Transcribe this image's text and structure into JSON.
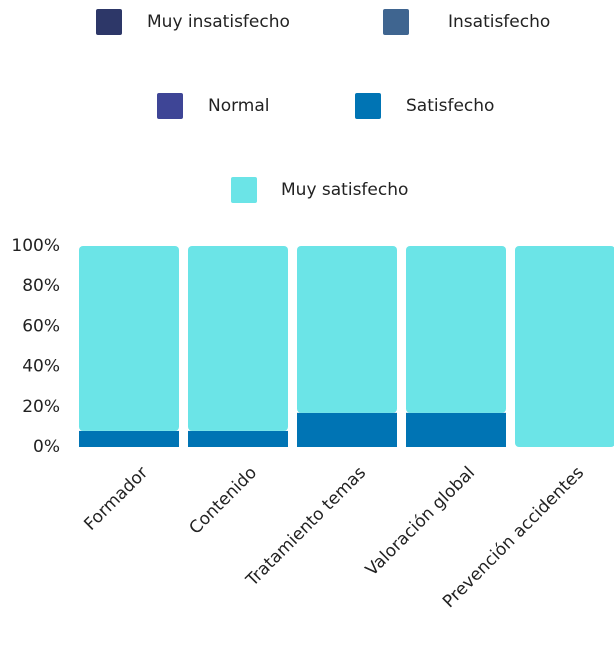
{
  "chart_data": {
    "type": "stacked_bar",
    "categories": [
      "Formador",
      "Contenido",
      "Tratamiento temas",
      "Valoración global",
      "Prevención accidentes"
    ],
    "series": [
      {
        "name": "Muy insatisfecho",
        "color": "#2d3768",
        "values": [
          0,
          0,
          0,
          0,
          0
        ]
      },
      {
        "name": "Insatisfecho",
        "color": "#3f6590",
        "values": [
          0,
          0,
          0,
          0,
          0
        ]
      },
      {
        "name": "Normal",
        "color": "#3e4596",
        "values": [
          0,
          0,
          0,
          0,
          0
        ]
      },
      {
        "name": "Satisfecho",
        "color": "#0074b4",
        "values": [
          8,
          8,
          17,
          17,
          0
        ]
      },
      {
        "name": "Muy satisfecho",
        "color": "#6be4e7",
        "values": [
          92,
          92,
          83,
          83,
          100
        ]
      }
    ],
    "ylim": [
      0,
      100
    ],
    "yticks": [
      {
        "value": 0,
        "label": "0%"
      },
      {
        "value": 20,
        "label": "20%"
      },
      {
        "value": 40,
        "label": "40%"
      },
      {
        "value": 60,
        "label": "60%"
      },
      {
        "value": 80,
        "label": "80%"
      },
      {
        "value": 100,
        "label": "100%"
      }
    ],
    "legend": "top"
  }
}
